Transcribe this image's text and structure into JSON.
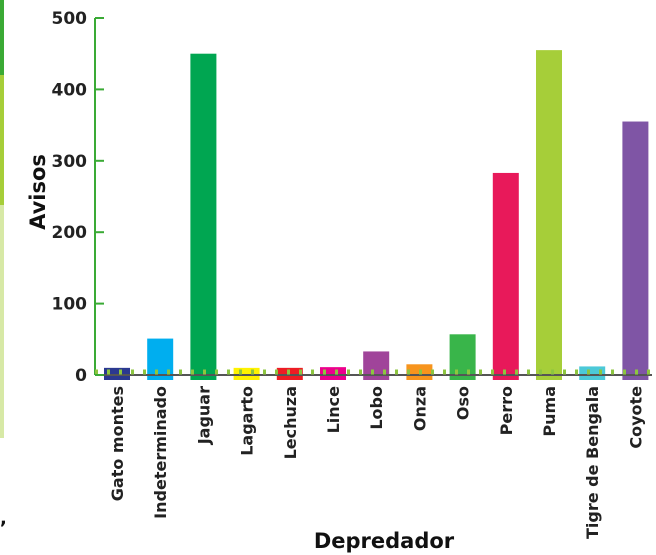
{
  "chart_data": {
    "type": "bar",
    "xlabel": "Depredador",
    "ylabel": "Avisos",
    "ylim": [
      0,
      500
    ],
    "yticks": [
      "0",
      "100",
      "200",
      "300",
      "400",
      "500"
    ],
    "grid": false,
    "categories": [
      "Gato montes",
      "Indeterminado",
      "Jaguar",
      "Lagarto",
      "Lechuza",
      "Lince",
      "Lobo",
      "Onza",
      "Oso",
      "Perro",
      "Puma",
      "Tigre de Bengala",
      "Coyote"
    ],
    "values": [
      10,
      51,
      450,
      10,
      10,
      11,
      33,
      15,
      57,
      283,
      455,
      12,
      355
    ],
    "colors": [
      "#2b3990",
      "#00aeef",
      "#00a651",
      "#fff200",
      "#ed1c24",
      "#ec008c",
      "#a0449a",
      "#f7941d",
      "#39b54a",
      "#e8195a",
      "#a6ce39",
      "#4cc9d8",
      "#7f55a5"
    ],
    "axis_color": "#3aaa35",
    "baseline_dash_color": "#8dc63f"
  },
  "edge_fragment": {
    "strip_colors": [
      "#3aaa35",
      "#a6ce39",
      "#d7e9a6"
    ],
    "glyph": ","
  }
}
